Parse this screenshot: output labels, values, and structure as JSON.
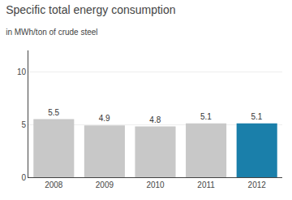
{
  "chart_data": {
    "type": "bar",
    "title": "Specific total energy consumption",
    "subtitle": "in MWh/ton of crude steel",
    "categories": [
      "2008",
      "2009",
      "2010",
      "2011",
      "2012"
    ],
    "values": [
      5.5,
      4.9,
      4.8,
      5.1,
      5.1
    ],
    "colors": [
      "#c8c8c8",
      "#c8c8c8",
      "#c8c8c8",
      "#c8c8c8",
      "#1a7faa"
    ],
    "ylim": [
      0,
      12
    ],
    "yticks": [
      0,
      5,
      10
    ],
    "grid": true,
    "data_labels": true
  }
}
